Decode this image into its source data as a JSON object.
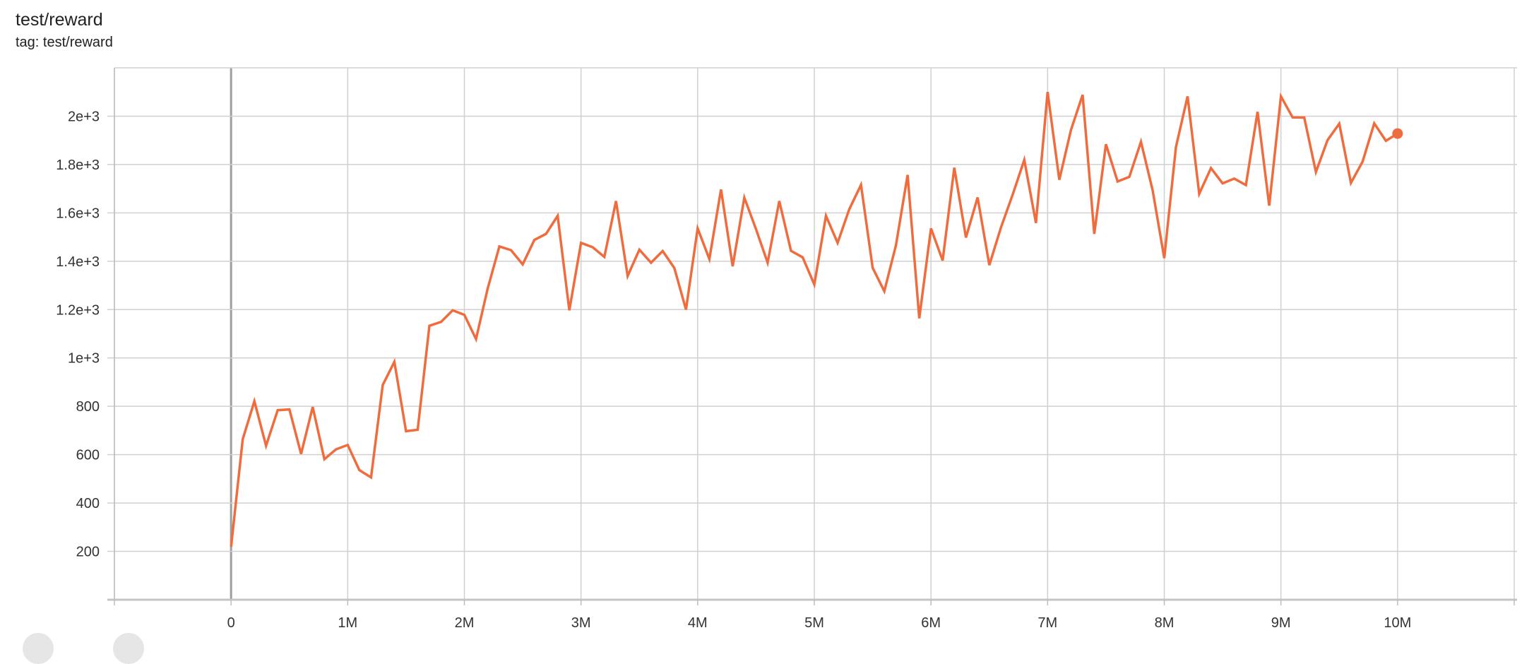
{
  "card": {
    "title": "test/reward",
    "subtitle": "tag: test/reward"
  },
  "colors": {
    "series": "#ef6c3e",
    "grid": "#d0d0d0",
    "zero_line": "#9e9e9e"
  },
  "chart_data": {
    "type": "line",
    "title": "test/reward",
    "xlabel": "",
    "ylabel": "",
    "xlim": [
      -1000000,
      11000000
    ],
    "ylim": [
      0,
      2200
    ],
    "grid": true,
    "x_ticks": [
      0,
      1000000,
      2000000,
      3000000,
      4000000,
      5000000,
      6000000,
      7000000,
      8000000,
      9000000,
      10000000
    ],
    "x_tick_labels": [
      "0",
      "1M",
      "2M",
      "3M",
      "4M",
      "5M",
      "6M",
      "7M",
      "8M",
      "9M",
      "10M"
    ],
    "y_ticks": [
      200,
      400,
      600,
      800,
      1000,
      1200,
      1400,
      1600,
      1800,
      2000
    ],
    "y_tick_labels": [
      "200",
      "400",
      "600",
      "800",
      "1e+3",
      "1.2e+3",
      "1.4e+3",
      "1.6e+3",
      "1.8e+3",
      "2e+3"
    ],
    "series": [
      {
        "x_step": 100000,
        "values": [
          219,
          664,
          821,
          637,
          784,
          787,
          603,
          797,
          581,
          622,
          640,
          536,
          506,
          888,
          984,
          697,
          703,
          1133,
          1149,
          1197,
          1178,
          1078,
          1287,
          1461,
          1446,
          1387,
          1488,
          1513,
          1588,
          1197,
          1476,
          1458,
          1418,
          1649,
          1339,
          1448,
          1394,
          1442,
          1372,
          1200,
          1536,
          1409,
          1697,
          1379,
          1663,
          1533,
          1394,
          1649,
          1443,
          1416,
          1304,
          1588,
          1476,
          1615,
          1716,
          1373,
          1276,
          1466,
          1757,
          1164,
          1536,
          1403,
          1787,
          1498,
          1664,
          1384,
          1540,
          1675,
          1819,
          1558,
          2100,
          1737,
          1943,
          2088,
          1513,
          1884,
          1730,
          1749,
          1894,
          1694,
          1413,
          1872,
          2082,
          1679,
          1785,
          1722,
          1742,
          1715,
          2018,
          1630,
          2082,
          1995,
          1994,
          1769,
          1901,
          1969,
          1724,
          1812,
          1970,
          1898,
          1928
        ]
      }
    ]
  }
}
